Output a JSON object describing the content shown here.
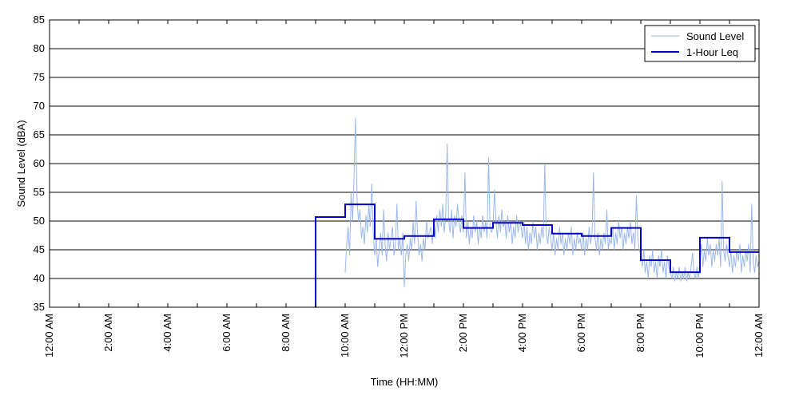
{
  "chart_data": {
    "type": "line",
    "title": "",
    "xlabel": "Time (HH:MM)",
    "ylabel": "Sound Level (dBA)",
    "xlim": [
      0,
      24
    ],
    "ylim": [
      35,
      85
    ],
    "x_ticks": [
      0,
      2,
      4,
      6,
      8,
      10,
      12,
      14,
      16,
      18,
      20,
      22,
      24
    ],
    "x_tick_labels": [
      "12:00 AM",
      "2:00 AM",
      "4:00 AM",
      "6:00 AM",
      "8:00 AM",
      "10:00 AM",
      "12:00 PM",
      "2:00 PM",
      "4:00 PM",
      "6:00 PM",
      "8:00 PM",
      "10:00 PM",
      "12:00 AM"
    ],
    "y_ticks": [
      35,
      40,
      45,
      50,
      55,
      60,
      65,
      70,
      75,
      80,
      85
    ],
    "grid": "horizontal",
    "legend_position": "top-right",
    "series": [
      {
        "name": "Sound Level",
        "color": "#9ab8ec",
        "style": "thin",
        "points": [
          [
            10.0,
            41.0
          ],
          [
            10.05,
            46.0
          ],
          [
            10.1,
            49.0
          ],
          [
            10.15,
            44.0
          ],
          [
            10.2,
            55.0
          ],
          [
            10.25,
            50.0
          ],
          [
            10.3,
            58.0
          ],
          [
            10.35,
            68.0
          ],
          [
            10.4,
            54.0
          ],
          [
            10.45,
            50.0
          ],
          [
            10.5,
            52.0
          ],
          [
            10.55,
            47.0
          ],
          [
            10.6,
            49.0
          ],
          [
            10.65,
            46.0
          ],
          [
            10.7,
            51.0
          ],
          [
            10.75,
            48.0
          ],
          [
            10.8,
            53.0
          ],
          [
            10.85,
            49.0
          ],
          [
            10.9,
            56.5
          ],
          [
            10.95,
            48.0
          ],
          [
            11.0,
            44.0
          ],
          [
            11.05,
            47.0
          ],
          [
            11.1,
            42.0
          ],
          [
            11.15,
            45.0
          ],
          [
            11.2,
            48.0
          ],
          [
            11.25,
            44.0
          ],
          [
            11.3,
            52.0
          ],
          [
            11.35,
            46.0
          ],
          [
            11.4,
            43.0
          ],
          [
            11.45,
            48.0
          ],
          [
            11.5,
            45.0
          ],
          [
            11.55,
            47.0
          ],
          [
            11.6,
            49.0
          ],
          [
            11.65,
            44.0
          ],
          [
            11.7,
            46.0
          ],
          [
            11.75,
            53.0
          ],
          [
            11.8,
            45.0
          ],
          [
            11.85,
            47.0
          ],
          [
            11.9,
            44.0
          ],
          [
            11.95,
            48.0
          ],
          [
            12.0,
            38.5
          ],
          [
            12.05,
            44.0
          ],
          [
            12.1,
            46.0
          ],
          [
            12.15,
            43.0
          ],
          [
            12.2,
            47.0
          ],
          [
            12.25,
            45.0
          ],
          [
            12.3,
            50.0
          ],
          [
            12.35,
            46.0
          ],
          [
            12.4,
            53.5
          ],
          [
            12.45,
            48.0
          ],
          [
            12.5,
            44.0
          ],
          [
            12.55,
            46.0
          ],
          [
            12.6,
            43.0
          ],
          [
            12.65,
            47.0
          ],
          [
            12.7,
            45.0
          ],
          [
            12.75,
            50.0
          ],
          [
            12.8,
            47.0
          ],
          [
            12.85,
            48.0
          ],
          [
            12.9,
            49.0
          ],
          [
            12.95,
            46.0
          ],
          [
            13.0,
            50.0
          ],
          [
            13.05,
            47.0
          ],
          [
            13.1,
            51.0
          ],
          [
            13.15,
            48.0
          ],
          [
            13.2,
            52.0
          ],
          [
            13.25,
            49.0
          ],
          [
            13.3,
            53.0
          ],
          [
            13.35,
            48.0
          ],
          [
            13.4,
            51.0
          ],
          [
            13.45,
            63.5
          ],
          [
            13.5,
            50.0
          ],
          [
            13.55,
            48.0
          ],
          [
            13.6,
            52.0
          ],
          [
            13.65,
            47.0
          ],
          [
            13.7,
            51.0
          ],
          [
            13.75,
            49.0
          ],
          [
            13.8,
            53.0
          ],
          [
            13.85,
            50.0
          ],
          [
            13.9,
            48.0
          ],
          [
            13.95,
            51.0
          ],
          [
            14.0,
            48.0
          ],
          [
            14.05,
            58.5
          ],
          [
            14.1,
            47.0
          ],
          [
            14.15,
            50.0
          ],
          [
            14.2,
            46.0
          ],
          [
            14.25,
            49.0
          ],
          [
            14.3,
            47.0
          ],
          [
            14.35,
            51.0
          ],
          [
            14.4,
            48.0
          ],
          [
            14.45,
            50.0
          ],
          [
            14.5,
            46.0
          ],
          [
            14.55,
            49.0
          ],
          [
            14.6,
            47.0
          ],
          [
            14.65,
            51.0
          ],
          [
            14.7,
            48.0
          ],
          [
            14.75,
            50.0
          ],
          [
            14.8,
            47.0
          ],
          [
            14.85,
            61.0
          ],
          [
            14.9,
            49.0
          ],
          [
            14.95,
            48.0
          ],
          [
            15.0,
            49.0
          ],
          [
            15.05,
            55.5
          ],
          [
            15.1,
            50.0
          ],
          [
            15.15,
            47.0
          ],
          [
            15.2,
            51.0
          ],
          [
            15.25,
            48.0
          ],
          [
            15.3,
            52.0
          ],
          [
            15.35,
            49.0
          ],
          [
            15.4,
            50.0
          ],
          [
            15.45,
            47.0
          ],
          [
            15.5,
            51.0
          ],
          [
            15.55,
            48.0
          ],
          [
            15.6,
            50.0
          ],
          [
            15.65,
            46.0
          ],
          [
            15.7,
            49.0
          ],
          [
            15.75,
            47.0
          ],
          [
            15.8,
            51.0
          ],
          [
            15.85,
            48.0
          ],
          [
            15.9,
            50.0
          ],
          [
            15.95,
            49.0
          ],
          [
            16.0,
            47.0
          ],
          [
            16.05,
            50.0
          ],
          [
            16.1,
            46.0
          ],
          [
            16.15,
            49.0
          ],
          [
            16.2,
            45.0
          ],
          [
            16.25,
            48.0
          ],
          [
            16.3,
            46.0
          ],
          [
            16.35,
            50.0
          ],
          [
            16.4,
            47.0
          ],
          [
            16.45,
            49.0
          ],
          [
            16.5,
            45.0
          ],
          [
            16.55,
            48.0
          ],
          [
            16.6,
            46.0
          ],
          [
            16.65,
            49.0
          ],
          [
            16.7,
            47.0
          ],
          [
            16.75,
            60.0
          ],
          [
            16.8,
            48.0
          ],
          [
            16.85,
            46.0
          ],
          [
            16.9,
            49.0
          ],
          [
            16.95,
            47.0
          ],
          [
            17.0,
            45.0
          ],
          [
            17.05,
            48.0
          ],
          [
            17.1,
            44.0
          ],
          [
            17.15,
            47.0
          ],
          [
            17.2,
            45.0
          ],
          [
            17.25,
            49.0
          ],
          [
            17.3,
            46.0
          ],
          [
            17.35,
            48.0
          ],
          [
            17.4,
            44.0
          ],
          [
            17.45,
            47.0
          ],
          [
            17.5,
            45.0
          ],
          [
            17.55,
            48.0
          ],
          [
            17.6,
            46.0
          ],
          [
            17.65,
            49.0
          ],
          [
            17.7,
            44.0
          ],
          [
            17.75,
            47.0
          ],
          [
            17.8,
            45.0
          ],
          [
            17.85,
            48.0
          ],
          [
            17.9,
            46.0
          ],
          [
            17.95,
            47.0
          ],
          [
            18.0,
            45.0
          ],
          [
            18.05,
            48.0
          ],
          [
            18.1,
            44.0
          ],
          [
            18.15,
            47.0
          ],
          [
            18.2,
            45.0
          ],
          [
            18.25,
            49.0
          ],
          [
            18.3,
            46.0
          ],
          [
            18.35,
            48.0
          ],
          [
            18.4,
            58.5
          ],
          [
            18.45,
            47.0
          ],
          [
            18.5,
            45.0
          ],
          [
            18.55,
            48.0
          ],
          [
            18.6,
            44.0
          ],
          [
            18.65,
            47.0
          ],
          [
            18.7,
            45.0
          ],
          [
            18.75,
            48.0
          ],
          [
            18.8,
            46.0
          ],
          [
            18.85,
            52.0
          ],
          [
            18.9,
            45.0
          ],
          [
            18.95,
            47.0
          ],
          [
            19.0,
            46.0
          ],
          [
            19.05,
            49.0
          ],
          [
            19.1,
            45.0
          ],
          [
            19.15,
            48.0
          ],
          [
            19.2,
            46.0
          ],
          [
            19.25,
            50.0
          ],
          [
            19.3,
            47.0
          ],
          [
            19.35,
            49.0
          ],
          [
            19.4,
            45.0
          ],
          [
            19.45,
            48.0
          ],
          [
            19.5,
            46.0
          ],
          [
            19.55,
            49.0
          ],
          [
            19.6,
            47.0
          ],
          [
            19.65,
            50.0
          ],
          [
            19.7,
            46.0
          ],
          [
            19.75,
            48.0
          ],
          [
            19.8,
            45.0
          ],
          [
            19.85,
            54.5
          ],
          [
            19.9,
            47.0
          ],
          [
            19.95,
            45.0
          ],
          [
            20.0,
            44.0
          ],
          [
            20.05,
            42.0
          ],
          [
            20.1,
            45.0
          ],
          [
            20.15,
            41.0
          ],
          [
            20.2,
            43.0
          ],
          [
            20.25,
            40.0
          ],
          [
            20.3,
            44.0
          ],
          [
            20.35,
            42.0
          ],
          [
            20.4,
            45.0
          ],
          [
            20.45,
            41.0
          ],
          [
            20.5,
            43.0
          ],
          [
            20.55,
            40.0
          ],
          [
            20.6,
            44.0
          ],
          [
            20.65,
            42.0
          ],
          [
            20.7,
            45.0
          ],
          [
            20.75,
            41.0
          ],
          [
            20.8,
            43.0
          ],
          [
            20.85,
            40.0
          ],
          [
            20.9,
            44.0
          ],
          [
            20.95,
            42.0
          ],
          [
            21.0,
            41.0
          ],
          [
            21.05,
            40.0
          ],
          [
            21.1,
            42.0
          ],
          [
            21.15,
            39.5
          ],
          [
            21.2,
            41.0
          ],
          [
            21.25,
            40.0
          ],
          [
            21.3,
            42.0
          ],
          [
            21.35,
            39.5
          ],
          [
            21.4,
            41.0
          ],
          [
            21.45,
            40.0
          ],
          [
            21.5,
            42.0
          ],
          [
            21.55,
            39.5
          ],
          [
            21.6,
            41.0
          ],
          [
            21.65,
            40.0
          ],
          [
            21.7,
            42.0
          ],
          [
            21.75,
            44.5
          ],
          [
            21.8,
            41.0
          ],
          [
            21.85,
            40.0
          ],
          [
            21.9,
            42.0
          ],
          [
            21.95,
            40.0
          ],
          [
            22.0,
            43.0
          ],
          [
            22.05,
            46.0
          ],
          [
            22.1,
            42.0
          ],
          [
            22.15,
            45.0
          ],
          [
            22.2,
            43.0
          ],
          [
            22.25,
            47.0
          ],
          [
            22.3,
            44.0
          ],
          [
            22.35,
            46.0
          ],
          [
            22.4,
            42.0
          ],
          [
            22.45,
            45.0
          ],
          [
            22.5,
            43.0
          ],
          [
            22.55,
            46.0
          ],
          [
            22.6,
            44.0
          ],
          [
            22.65,
            47.0
          ],
          [
            22.7,
            42.0
          ],
          [
            22.75,
            57.0
          ],
          [
            22.8,
            45.0
          ],
          [
            22.85,
            43.0
          ],
          [
            22.9,
            46.0
          ],
          [
            22.95,
            44.0
          ],
          [
            23.0,
            42.0
          ],
          [
            23.05,
            45.0
          ],
          [
            23.1,
            41.0
          ],
          [
            23.15,
            44.0
          ],
          [
            23.2,
            42.0
          ],
          [
            23.25,
            45.0
          ],
          [
            23.3,
            43.0
          ],
          [
            23.35,
            46.0
          ],
          [
            23.4,
            41.0
          ],
          [
            23.45,
            44.0
          ],
          [
            23.5,
            42.0
          ],
          [
            23.55,
            45.0
          ],
          [
            23.6,
            43.0
          ],
          [
            23.65,
            46.0
          ],
          [
            23.7,
            41.0
          ],
          [
            23.75,
            53.0
          ],
          [
            23.8,
            43.0
          ],
          [
            23.85,
            41.0
          ],
          [
            23.9,
            44.0
          ],
          [
            23.95,
            42.0
          ],
          [
            24.0,
            43.0
          ]
        ]
      },
      {
        "name": "1-Hour Leq",
        "color": "#0000cc",
        "style": "step",
        "points": [
          [
            9,
            35
          ],
          [
            9,
            50.7
          ],
          [
            10,
            50.7
          ],
          [
            10,
            52.9
          ],
          [
            11,
            52.9
          ],
          [
            11,
            46.9
          ],
          [
            12,
            46.9
          ],
          [
            12,
            47.4
          ],
          [
            13,
            47.4
          ],
          [
            13,
            50.3
          ],
          [
            14,
            50.3
          ],
          [
            14,
            48.8
          ],
          [
            15,
            48.8
          ],
          [
            15,
            49.7
          ],
          [
            16,
            49.7
          ],
          [
            16,
            49.3
          ],
          [
            17,
            49.3
          ],
          [
            17,
            47.8
          ],
          [
            18,
            47.8
          ],
          [
            18,
            47.4
          ],
          [
            19,
            47.4
          ],
          [
            19,
            48.8
          ],
          [
            20,
            48.8
          ],
          [
            20,
            43.2
          ],
          [
            21,
            43.2
          ],
          [
            21,
            41.1
          ],
          [
            22,
            41.1
          ],
          [
            22,
            47.1
          ],
          [
            23,
            47.1
          ],
          [
            23,
            44.6
          ],
          [
            24,
            44.6
          ]
        ]
      }
    ]
  }
}
